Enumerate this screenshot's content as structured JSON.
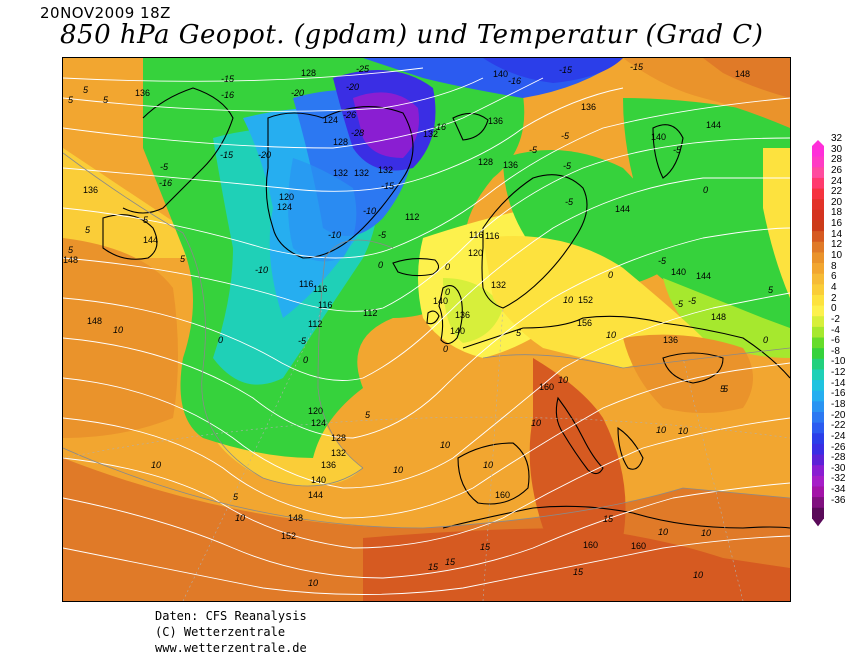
{
  "header": {
    "date": "20NOV2009 18Z",
    "title": "850 hPa Geopot. (gpdam) und  Temperatur (Grad C)"
  },
  "footer": {
    "lines": [
      "Daten: CFS Reanalysis",
      "(C) Wetterzentrale",
      "www.wetterzentrale.de"
    ]
  },
  "legend": {
    "values": [
      32,
      30,
      28,
      26,
      24,
      22,
      20,
      18,
      16,
      14,
      12,
      10,
      8,
      6,
      4,
      2,
      0,
      -2,
      -4,
      -6,
      -8,
      -10,
      -12,
      -14,
      -16,
      -18,
      -20,
      -22,
      -24,
      -26,
      -28,
      -30,
      -32,
      -34,
      -36
    ],
    "colors": {
      "32": "#ff2fd9",
      "30": "#ff3cc4",
      "28": "#ff4c9f",
      "26": "#ff3b6e",
      "24": "#f5333f",
      "22": "#e23329",
      "20": "#d4331f",
      "18": "#cc3c19",
      "16": "#d65a21",
      "14": "#e07a28",
      "12": "#ea932b",
      "10": "#f2a630",
      "8": "#f6bb36",
      "6": "#facd38",
      "4": "#fde23e",
      "2": "#fdf14d",
      "0": "#d7ef3b",
      "-2": "#a6e82e",
      "-4": "#66dc2a",
      "-6": "#36d23c",
      "-8": "#23d07d",
      "-10": "#1fd0b7",
      "-12": "#1fc3e0",
      "-14": "#26aef0",
      "-16": "#2a93f2",
      "-18": "#2c78f2",
      "-20": "#2b5bf0",
      "-22": "#2b3ee9",
      "-24": "#3a2ee4",
      "-26": "#5d22d7",
      "-28": "#8a1ed2",
      "-30": "#a61ec8",
      "-32": "#a313a8",
      "-34": "#80107f",
      "-36": "#5a0a59"
    }
  },
  "map": {
    "temperature_labels": [
      "-15",
      "-16",
      "-20",
      "-20",
      "-25",
      "-26",
      "-28",
      "-20",
      "-15",
      "-16",
      "-16",
      "-15",
      "-10",
      "-10",
      "-5",
      "-5",
      "-5",
      "-5",
      "-5",
      "-5",
      "-5",
      "-5",
      "-10",
      "-15",
      "-5",
      "-5",
      "-5",
      "-5",
      "0",
      "0",
      "0",
      "0",
      "0",
      "0",
      "0",
      "0",
      "0",
      "5",
      "5",
      "5",
      "5",
      "5",
      "5",
      "5",
      "5",
      "5",
      "5",
      "5",
      "10",
      "10",
      "10",
      "10",
      "10",
      "10",
      "10",
      "10",
      "10",
      "10",
      "10",
      "10",
      "10",
      "10",
      "10",
      "15",
      "15",
      "15",
      "15",
      "15",
      "10",
      "10",
      "-5"
    ],
    "geopotential_labels": [
      "128",
      "132",
      "136",
      "136",
      "136",
      "136",
      "140",
      "140",
      "140",
      "140",
      "144",
      "148",
      "148",
      "144",
      "144",
      "148",
      "132",
      "112",
      "112",
      "116",
      "116",
      "120",
      "124",
      "128",
      "132",
      "136",
      "140",
      "144",
      "148",
      "152",
      "152",
      "156",
      "160",
      "160",
      "160",
      "160",
      "124",
      "128",
      "132",
      "120",
      "116",
      "120",
      "124",
      "128",
      "132",
      "136",
      "140",
      "144",
      "148",
      "136",
      "140",
      "116",
      "112",
      "132",
      "136"
    ]
  }
}
